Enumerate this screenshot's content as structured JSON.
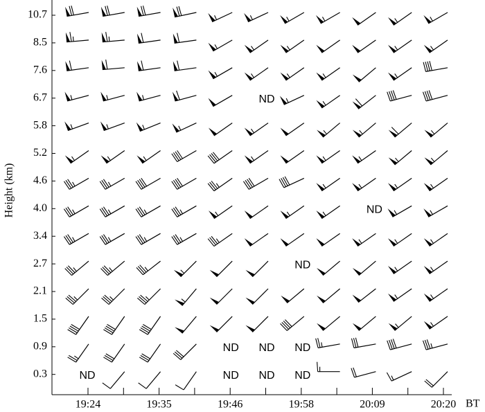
{
  "chart_data": {
    "type": "wind-barb",
    "y_label": "Height (km)",
    "x_unit": "BT",
    "x_labels": [
      "19:24",
      null,
      "19:35",
      null,
      "19:46",
      null,
      "19:58",
      null,
      "20:09",
      null,
      "20:20"
    ],
    "rows": [
      {
        "height": "10.7",
        "cells": [
          [
            260,
            28
          ],
          [
            260,
            28
          ],
          [
            260,
            28
          ],
          [
            258,
            28
          ],
          [
            245,
            22
          ],
          [
            245,
            22
          ],
          [
            240,
            22
          ],
          [
            240,
            22
          ],
          [
            235,
            20
          ],
          [
            235,
            22
          ],
          [
            240,
            22
          ]
        ]
      },
      {
        "height": "8.5",
        "cells": [
          [
            265,
            26
          ],
          [
            265,
            26
          ],
          [
            262,
            24
          ],
          [
            262,
            24
          ],
          [
            240,
            22
          ],
          [
            235,
            22
          ],
          [
            235,
            22
          ],
          [
            235,
            20
          ],
          [
            235,
            20
          ],
          [
            235,
            22
          ],
          [
            235,
            22
          ]
        ]
      },
      {
        "height": "7.6",
        "cells": [
          [
            262,
            24
          ],
          [
            265,
            24
          ],
          [
            262,
            24
          ],
          [
            262,
            24
          ],
          [
            240,
            22
          ],
          [
            235,
            22
          ],
          [
            235,
            22
          ],
          [
            235,
            22
          ],
          [
            230,
            20
          ],
          [
            235,
            22
          ],
          [
            260,
            16
          ]
        ]
      },
      {
        "height": "6.7",
        "cells": [
          [
            255,
            22
          ],
          [
            255,
            22
          ],
          [
            255,
            22
          ],
          [
            255,
            24
          ],
          [
            240,
            20
          ],
          "ND",
          [
            245,
            22
          ],
          [
            235,
            22
          ],
          [
            232,
            24
          ],
          [
            255,
            16
          ],
          [
            255,
            16
          ]
        ]
      },
      {
        "height": "5.8",
        "cells": [
          [
            250,
            22
          ],
          [
            250,
            22
          ],
          [
            248,
            22
          ],
          [
            245,
            22
          ],
          [
            235,
            20
          ],
          [
            235,
            22
          ],
          [
            235,
            20
          ],
          [
            230,
            22
          ],
          [
            230,
            22
          ],
          [
            230,
            24
          ],
          [
            230,
            22
          ]
        ]
      },
      {
        "height": "5.2",
        "cells": [
          [
            235,
            22
          ],
          [
            235,
            22
          ],
          [
            235,
            22
          ],
          [
            240,
            16
          ],
          [
            235,
            16
          ],
          [
            235,
            22
          ],
          [
            235,
            20
          ],
          [
            235,
            22
          ],
          [
            235,
            22
          ],
          [
            230,
            22
          ],
          [
            230,
            22
          ]
        ]
      },
      {
        "height": "4.6",
        "cells": [
          [
            240,
            14
          ],
          [
            240,
            14
          ],
          [
            240,
            16
          ],
          [
            240,
            16
          ],
          [
            235,
            14
          ],
          [
            240,
            16
          ],
          [
            245,
            16
          ],
          [
            235,
            22
          ],
          [
            235,
            22
          ],
          [
            235,
            22
          ],
          [
            235,
            22
          ]
        ]
      },
      {
        "height": "4.0",
        "cells": [
          [
            240,
            14
          ],
          [
            240,
            14
          ],
          [
            240,
            14
          ],
          [
            240,
            14
          ],
          [
            235,
            22
          ],
          [
            235,
            20
          ],
          [
            235,
            22
          ],
          [
            235,
            22
          ],
          "ND",
          [
            240,
            22
          ],
          [
            240,
            22
          ]
        ]
      },
      {
        "height": "3.4",
        "cells": [
          [
            240,
            14
          ],
          [
            240,
            14
          ],
          [
            240,
            14
          ],
          [
            240,
            14
          ],
          [
            235,
            14
          ],
          [
            235,
            20
          ],
          [
            235,
            20
          ],
          [
            235,
            20
          ],
          [
            235,
            22
          ],
          [
            235,
            22
          ],
          [
            235,
            22
          ]
        ]
      },
      {
        "height": "2.7",
        "cells": [
          [
            230,
            14
          ],
          [
            230,
            14
          ],
          [
            232,
            14
          ],
          [
            225,
            22
          ],
          [
            225,
            20
          ],
          [
            225,
            20
          ],
          "ND",
          [
            230,
            20
          ],
          [
            230,
            20
          ],
          [
            235,
            22
          ],
          [
            235,
            22
          ]
        ]
      },
      {
        "height": "2.1",
        "cells": [
          [
            225,
            14
          ],
          [
            225,
            14
          ],
          [
            225,
            14
          ],
          [
            220,
            22
          ],
          [
            225,
            20
          ],
          [
            225,
            20
          ],
          [
            230,
            20
          ],
          [
            230,
            20
          ],
          [
            232,
            20
          ],
          [
            235,
            22
          ],
          [
            235,
            22
          ]
        ]
      },
      {
        "height": "1.5",
        "cells": [
          [
            215,
            16
          ],
          [
            215,
            16
          ],
          [
            215,
            16
          ],
          [
            220,
            20
          ],
          [
            225,
            20
          ],
          [
            225,
            20
          ],
          [
            230,
            16
          ],
          [
            230,
            20
          ],
          [
            230,
            20
          ],
          [
            230,
            22
          ],
          [
            235,
            22
          ]
        ]
      },
      {
        "height": "0.9",
        "cells": [
          [
            215,
            10
          ],
          [
            215,
            12
          ],
          [
            215,
            12
          ],
          [
            225,
            12
          ],
          "ND",
          "ND",
          "ND",
          [
            260,
            10
          ],
          [
            260,
            12
          ],
          [
            255,
            16
          ],
          [
            255,
            14
          ]
        ]
      },
      {
        "height": "0.3",
        "cells": [
          "ND",
          [
            220,
            4
          ],
          [
            220,
            4
          ],
          [
            215,
            4
          ],
          "ND",
          "ND",
          "ND",
          [
            270,
            6
          ],
          [
            255,
            8
          ],
          [
            245,
            6
          ],
          [
            225,
            8
          ]
        ]
      }
    ]
  }
}
